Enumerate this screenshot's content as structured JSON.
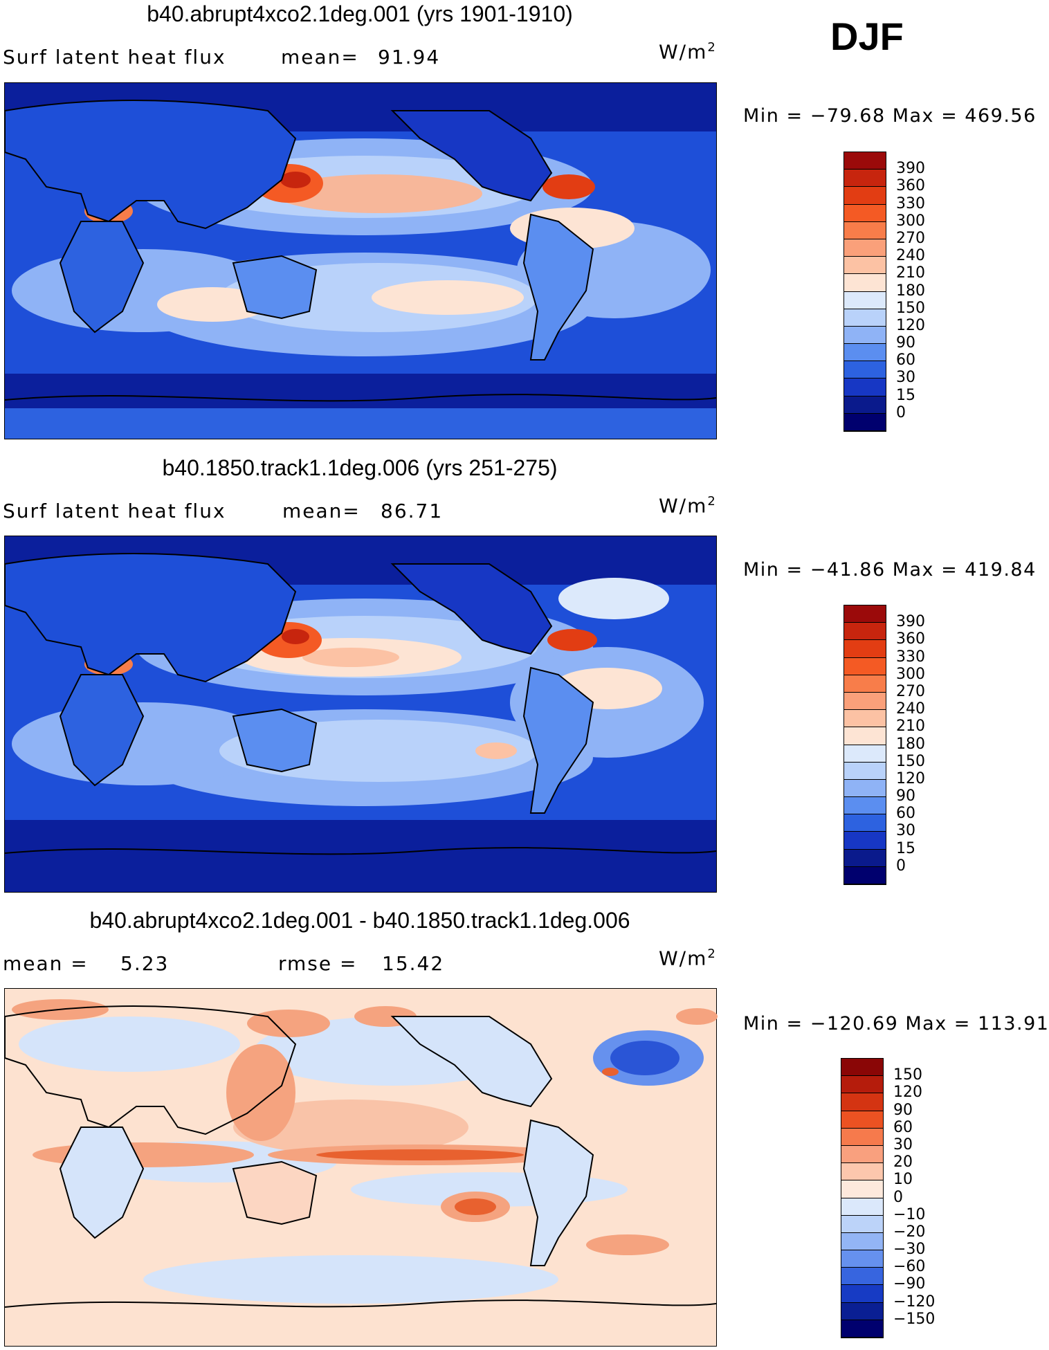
{
  "season": "DJF",
  "panels": [
    {
      "id": "p1",
      "title": "b40.abrupt4xco2.1deg.001 (yrs 1901-1910)",
      "left_label": "Surf latent heat flux",
      "stat_label": "mean=",
      "stat_value": "91.94",
      "units": "W/m",
      "units_exp": "2",
      "min_label": "Min = −79.68 Max = 469.56",
      "colorbar": {
        "labels": [
          "390",
          "360",
          "330",
          "300",
          "270",
          "240",
          "210",
          "180",
          "150",
          "120",
          "90",
          "60",
          "30",
          "15",
          "0"
        ],
        "colors": [
          "#9b0a0a",
          "#c7250e",
          "#e23d13",
          "#f45a24",
          "#f87d4a",
          "#faa07a",
          "#fcc2a4",
          "#fde4d4",
          "#dce9fb",
          "#b9d2fa",
          "#8fb3f6",
          "#5b8ef0",
          "#2d62e0",
          "#1737c4",
          "#0a1a8c",
          "#00006e"
        ]
      },
      "colors": {
        "background": "#1e4fd8",
        "ocean_mid": "#4d7fe8",
        "warm": "#f7b79a",
        "hot": "#e64b1c",
        "cold": "#0b1f9c"
      }
    },
    {
      "id": "p2",
      "title": "b40.1850.track1.1deg.006 (yrs 251-275)",
      "left_label": "Surf latent heat flux",
      "stat_label": "mean=",
      "stat_value": "86.71",
      "units": "W/m",
      "units_exp": "2",
      "min_label": "Min = −41.86 Max = 419.84",
      "colorbar": {
        "labels": [
          "390",
          "360",
          "330",
          "300",
          "270",
          "240",
          "210",
          "180",
          "150",
          "120",
          "90",
          "60",
          "30",
          "15",
          "0"
        ],
        "colors": [
          "#9b0a0a",
          "#c7250e",
          "#e23d13",
          "#f45a24",
          "#f87d4a",
          "#faa07a",
          "#fcc2a4",
          "#fde4d4",
          "#dce9fb",
          "#b9d2fa",
          "#8fb3f6",
          "#5b8ef0",
          "#2d62e0",
          "#1737c4",
          "#0a1a8c",
          "#00006e"
        ]
      },
      "colors": {
        "background": "#1e4fd8",
        "ocean_mid": "#4d7fe8",
        "warm": "#f7c0a4",
        "hot": "#e64b1c",
        "cold": "#0b1f9c"
      }
    },
    {
      "id": "p3",
      "title": "b40.abrupt4xco2.1deg.001 - b40.1850.track1.1deg.006",
      "left_label": "mean =",
      "left_value": "5.23",
      "stat_label": "rmse =",
      "stat_value": "15.42",
      "units": "W/m",
      "units_exp": "2",
      "min_label": "Min = −120.69 Max = 113.91",
      "colorbar": {
        "labels": [
          "150",
          "120",
          "90",
          "60",
          "30",
          "20",
          "10",
          "0",
          "−10",
          "−20",
          "−30",
          "−60",
          "−90",
          "−120",
          "−150"
        ],
        "colors": [
          "#8a0606",
          "#b51c0c",
          "#d43412",
          "#ec5222",
          "#f67a4c",
          "#f9a07e",
          "#fcc7ad",
          "#fde9dc",
          "#dbe8fb",
          "#bcd3f9",
          "#93b5f5",
          "#6691ee",
          "#3765df",
          "#173bc4",
          "#0a1f93",
          "#00006e"
        ]
      },
      "colors": {
        "background": "#fde2d0",
        "neutral_blue": "#d5e4fa",
        "warm": "#f5a37f",
        "hot": "#e8612f",
        "cold": "#2a55d6"
      }
    }
  ]
}
